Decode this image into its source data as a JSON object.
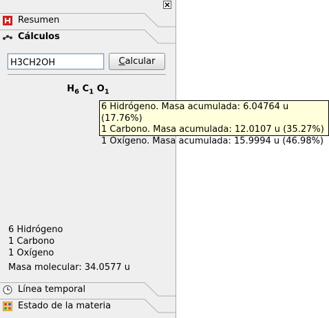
{
  "tabs": {
    "resumen": "Resumen",
    "calculos": "Cálculos",
    "linea_temporal": "Línea temporal",
    "estado_materia": "Estado de la materia"
  },
  "input": {
    "value": "H3CH2OH",
    "placeholder": ""
  },
  "calc_button": {
    "prefix": "",
    "accel": "C",
    "rest": "alcular"
  },
  "formula": [
    {
      "symbol": "H",
      "count": "6"
    },
    {
      "symbol": "C",
      "count": "1"
    },
    {
      "symbol": "O",
      "count": "1"
    }
  ],
  "composition": [
    "6 Hidrógeno",
    "1 Carbono",
    "1 Oxígeno"
  ],
  "molecular_mass": "Masa molecular: 34.0577 u",
  "tooltip": [
    "6 Hidrógeno. Masa acumulada: 6.04764 u (17.76%)",
    "1 Carbono. Masa acumulada: 12.0107 u (35.27%)",
    "1 Oxígeno. Masa acumulada: 15.9994 u (46.98%)"
  ],
  "icons": {
    "close": "close-icon",
    "resumen": "resumen-icon",
    "calculos": "molecule-icon",
    "linea_temporal": "clock-icon",
    "estado_materia": "states-of-matter-icon"
  },
  "colors": {
    "panel_bg": "#efefef",
    "tooltip_bg": "#ffffdc",
    "resumen_icon": "#cc2222"
  }
}
